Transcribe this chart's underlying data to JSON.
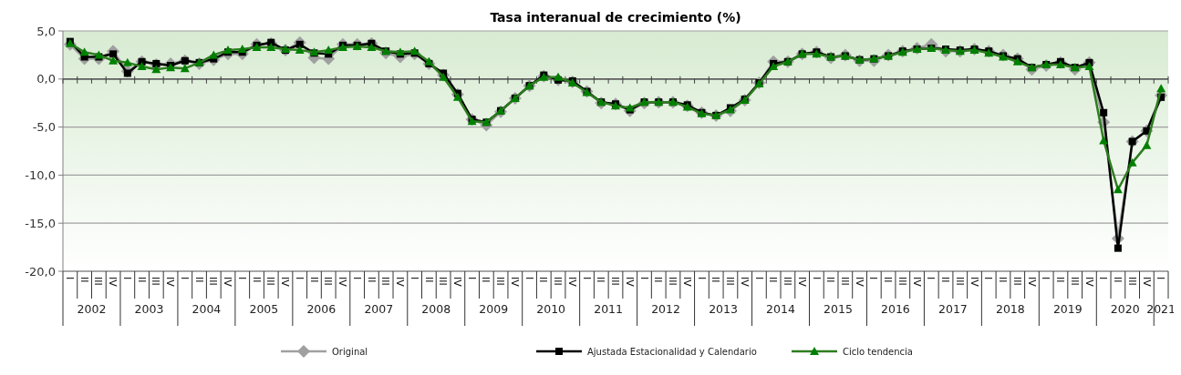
{
  "chart_data": {
    "type": "line",
    "title": "Tasa interanual de crecimiento (%)",
    "categories": [
      "I",
      "II",
      "III",
      "IV",
      "I",
      "II",
      "III",
      "IV",
      "I",
      "II",
      "III",
      "IV",
      "I",
      "II",
      "III",
      "IV",
      "I",
      "II",
      "III",
      "IV",
      "I",
      "II",
      "III",
      "IV",
      "I",
      "II",
      "III",
      "IV",
      "I",
      "II",
      "III",
      "IV",
      "I",
      "II",
      "III",
      "IV",
      "I",
      "II",
      "III",
      "IV",
      "I",
      "II",
      "III",
      "IV",
      "I",
      "II",
      "III",
      "IV",
      "I",
      "II",
      "III",
      "IV",
      "I",
      "II",
      "III",
      "IV",
      "I",
      "II",
      "III",
      "IV",
      "I",
      "II",
      "III",
      "IV",
      "I",
      "II",
      "III",
      "IV",
      "I",
      "II",
      "III",
      "IV",
      "I",
      "II",
      "III",
      "IV",
      "I"
    ],
    "annotations": [
      "2002",
      "2003",
      "2004",
      "2005",
      "2006",
      "2007",
      "2008",
      "2009",
      "2010",
      "2011",
      "2012",
      "2013",
      "2014",
      "2015",
      "2016",
      "2017",
      "2018",
      "2019",
      "2020",
      "2021"
    ],
    "series": [
      {
        "name": "Original",
        "color": "#a0a0a0",
        "marker": "diamond",
        "values": [
          3.6,
          2.1,
          2.1,
          2.9,
          0.8,
          1.8,
          1.5,
          1.6,
          1.9,
          1.6,
          2.0,
          2.6,
          2.6,
          3.6,
          3.7,
          3.0,
          3.8,
          2.2,
          2.1,
          3.6,
          3.6,
          3.7,
          2.7,
          2.3,
          2.6,
          1.6,
          0.4,
          -1.6,
          -4.2,
          -4.8,
          -3.4,
          -2.0,
          -0.7,
          0.3,
          -0.1,
          -0.3,
          -1.3,
          -2.5,
          -2.6,
          -3.3,
          -2.5,
          -2.4,
          -2.4,
          -2.8,
          -3.5,
          -3.8,
          -3.3,
          -2.2,
          -0.4,
          1.8,
          1.8,
          2.6,
          2.8,
          2.2,
          2.5,
          1.9,
          1.9,
          2.5,
          2.9,
          3.2,
          3.6,
          2.9,
          2.9,
          3.1,
          2.9,
          2.5,
          2.1,
          1.0,
          1.4,
          1.7,
          1.0,
          1.7,
          -4.5,
          -16.6,
          -6.5,
          -5.4,
          -1.7
        ]
      },
      {
        "name": "Ajustada Estacionalidad y Calendario",
        "color": "#000000",
        "marker": "square",
        "values": [
          3.9,
          2.3,
          2.3,
          2.6,
          0.6,
          1.8,
          1.6,
          1.4,
          1.9,
          1.7,
          2.1,
          2.8,
          2.8,
          3.5,
          3.8,
          3.0,
          3.6,
          2.7,
          2.6,
          3.5,
          3.5,
          3.7,
          2.9,
          2.6,
          2.7,
          1.6,
          0.6,
          -1.5,
          -4.2,
          -4.5,
          -3.3,
          -2.0,
          -0.7,
          0.4,
          -0.1,
          -0.2,
          -1.3,
          -2.4,
          -2.6,
          -3.2,
          -2.4,
          -2.4,
          -2.4,
          -2.7,
          -3.5,
          -3.8,
          -3.0,
          -2.1,
          -0.4,
          1.6,
          1.8,
          2.6,
          2.8,
          2.3,
          2.4,
          2.0,
          2.1,
          2.4,
          2.9,
          3.1,
          3.2,
          3.1,
          3.0,
          3.1,
          2.9,
          2.4,
          2.1,
          1.2,
          1.5,
          1.8,
          1.2,
          1.7,
          -3.5,
          -17.6,
          -6.5,
          -5.4,
          -1.9
        ]
      },
      {
        "name": "Ciclo tendencia",
        "color": "#2e7d20",
        "marker": "triangle",
        "values": [
          3.7,
          2.8,
          2.5,
          1.9,
          1.7,
          1.3,
          1.0,
          1.2,
          1.1,
          1.7,
          2.5,
          3.0,
          3.1,
          3.3,
          3.3,
          3.1,
          3.0,
          2.8,
          3.0,
          3.3,
          3.4,
          3.3,
          2.9,
          2.8,
          2.9,
          1.8,
          0.2,
          -1.9,
          -4.4,
          -4.5,
          -3.3,
          -2.0,
          -0.7,
          0.2,
          0.2,
          -0.4,
          -1.4,
          -2.4,
          -2.8,
          -3.0,
          -2.4,
          -2.4,
          -2.4,
          -2.9,
          -3.6,
          -3.8,
          -3.2,
          -2.2,
          -0.5,
          1.3,
          1.8,
          2.6,
          2.6,
          2.3,
          2.4,
          2.0,
          2.1,
          2.4,
          2.8,
          3.1,
          3.2,
          3.0,
          2.9,
          3.0,
          2.7,
          2.3,
          1.8,
          1.2,
          1.5,
          1.5,
          1.2,
          1.3,
          -6.4,
          -11.5,
          -8.7,
          -6.9,
          -1.0
        ]
      }
    ],
    "ylim": [
      -20,
      5
    ],
    "yticks": [
      {
        "value": 5,
        "label": "5,0"
      },
      {
        "value": 0,
        "label": "0,0"
      },
      {
        "value": -5,
        "label": "-5,0"
      },
      {
        "value": -10,
        "label": "-10,0"
      },
      {
        "value": -15,
        "label": "-15,0"
      },
      {
        "value": -20,
        "label": "-20,0"
      }
    ],
    "grid": "y",
    "legend": "bottom",
    "line_style": "solid"
  }
}
